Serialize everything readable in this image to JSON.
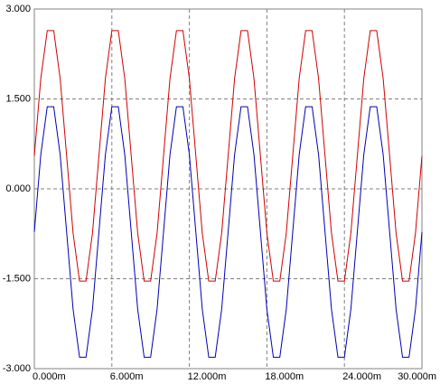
{
  "chart_data": {
    "type": "line",
    "x": [
      0,
      0.0005,
      0.001,
      0.0015,
      0.002,
      0.0025,
      0.003,
      0.0035,
      0.004,
      0.0045,
      0.005,
      0.0055,
      0.006,
      0.0065,
      0.007,
      0.0075,
      0.008,
      0.0085,
      0.009,
      0.0095,
      0.01,
      0.0105,
      0.011,
      0.0115,
      0.012,
      0.0125,
      0.013,
      0.0135,
      0.014,
      0.0145,
      0.015,
      0.0155,
      0.016,
      0.0165,
      0.017,
      0.0175,
      0.018,
      0.0185,
      0.019,
      0.0195,
      0.02,
      0.0205,
      0.021,
      0.0215,
      0.022,
      0.0225,
      0.023,
      0.0235,
      0.024,
      0.0245,
      0.025,
      0.0255,
      0.026,
      0.0265,
      0.027,
      0.0275,
      0.028,
      0.0285,
      0.029,
      0.0295,
      0.03
    ],
    "series": [
      {
        "color": "#d00000",
        "values": [
          0.55,
          1.84,
          2.64,
          2.64,
          1.84,
          0.55,
          -0.74,
          -1.54,
          -1.54,
          -0.74,
          0.55,
          1.84,
          2.64,
          2.64,
          1.84,
          0.55,
          -0.74,
          -1.54,
          -1.54,
          -0.74,
          0.55,
          1.84,
          2.64,
          2.64,
          1.84,
          0.55,
          -0.74,
          -1.54,
          -1.54,
          -0.74,
          0.55,
          1.84,
          2.64,
          2.64,
          1.84,
          0.55,
          -0.74,
          -1.54,
          -1.54,
          -0.74,
          0.55,
          1.84,
          2.64,
          2.64,
          1.84,
          0.55,
          -0.74,
          -1.54,
          -1.54,
          -0.74,
          0.55,
          1.84,
          2.64,
          2.64,
          1.84,
          0.55,
          -0.74,
          -1.54,
          -1.54,
          -0.74,
          0.55
        ]
      },
      {
        "color": "#0000b0",
        "values": [
          -0.72,
          0.57,
          1.37,
          1.37,
          0.57,
          -0.72,
          -2.01,
          -2.81,
          -2.81,
          -2.01,
          -0.72,
          0.57,
          1.37,
          1.37,
          0.57,
          -0.72,
          -2.01,
          -2.81,
          -2.81,
          -2.01,
          -0.72,
          0.57,
          1.37,
          1.37,
          0.57,
          -0.72,
          -2.01,
          -2.81,
          -2.81,
          -2.01,
          -0.72,
          0.57,
          1.37,
          1.37,
          0.57,
          -0.72,
          -2.01,
          -2.81,
          -2.81,
          -2.01,
          -0.72,
          0.57,
          1.37,
          1.37,
          0.57,
          -0.72,
          -2.01,
          -2.81,
          -2.81,
          -2.01,
          -0.72,
          0.57,
          1.37,
          1.37,
          0.57,
          -0.72,
          -2.01,
          -2.81,
          -2.81,
          -2.01,
          -0.72
        ]
      }
    ],
    "xlim": [
      0,
      0.03
    ],
    "ylim": [
      -3,
      3
    ],
    "xticks": [
      {
        "value": 0,
        "label": "0.000m"
      },
      {
        "value": 0.006,
        "label": "6.000m"
      },
      {
        "value": 0.012,
        "label": "12.000m"
      },
      {
        "value": 0.018,
        "label": "18.000m"
      },
      {
        "value": 0.024,
        "label": "24.000m"
      },
      {
        "value": 0.03,
        "label": "30.000m"
      }
    ],
    "yticks": [
      {
        "value": 3,
        "label": "3.000"
      },
      {
        "value": 1.5,
        "label": "1.500"
      },
      {
        "value": 0,
        "label": "0.000"
      },
      {
        "value": -1.5,
        "label": "-1.500"
      },
      {
        "value": -3,
        "label": "-3.000"
      }
    ],
    "grid": true
  }
}
